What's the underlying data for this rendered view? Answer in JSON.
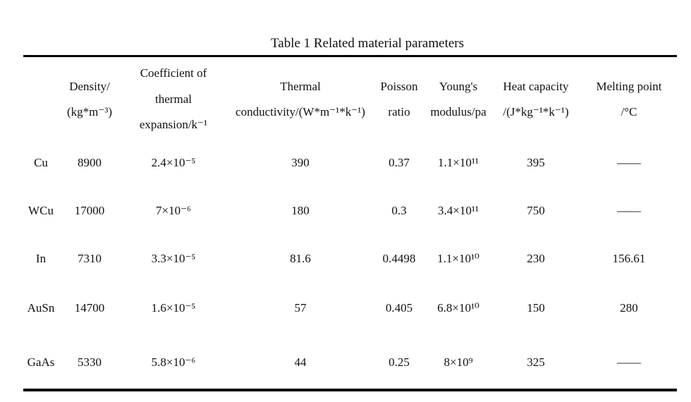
{
  "title": "Table 1 Related material parameters",
  "table": {
    "header": [
      [],
      [
        "Density/",
        "(kg*m⁻³)"
      ],
      [
        "Coefficient of",
        "thermal",
        "expansion/k⁻¹"
      ],
      [
        "Thermal",
        "conductivity/(W*m⁻¹*k⁻¹)"
      ],
      [
        "Poisson",
        "ratio"
      ],
      [
        "Young's",
        "modulus/pa"
      ],
      [
        "Heat capacity",
        "/(J*kg⁻¹*k⁻¹)"
      ],
      [
        "Melting point",
        "/°C"
      ]
    ],
    "rows": [
      [
        "Cu",
        "8900",
        "2.4×10⁻⁵",
        "390",
        "0.37",
        "1.1×10¹¹",
        "395",
        "——"
      ],
      [
        "WCu",
        "17000",
        "7×10⁻⁶",
        "180",
        "0.3",
        "3.4×10¹¹",
        "750",
        "——"
      ],
      [
        "In",
        "7310",
        "3.3×10⁻⁵",
        "81.6",
        "0.4498",
        "1.1×10¹⁰",
        "230",
        "156.61"
      ],
      [
        "AuSn",
        "14700",
        "1.6×10⁻⁵",
        "57",
        "0.405",
        "6.8×10¹⁰",
        "150",
        "280"
      ],
      [
        "GaAs",
        "5330",
        "5.8×10⁻⁶",
        "44",
        "0.25",
        "8×10⁹",
        "325",
        "——"
      ]
    ]
  }
}
